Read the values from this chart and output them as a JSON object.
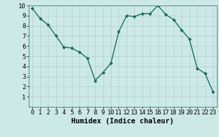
{
  "xlabel": "Humidex (Indice chaleur)",
  "x": [
    0,
    1,
    2,
    3,
    4,
    5,
    6,
    7,
    8,
    9,
    10,
    11,
    12,
    13,
    14,
    15,
    16,
    17,
    18,
    19,
    20,
    21,
    22,
    23
  ],
  "y": [
    9.7,
    8.7,
    8.1,
    7.0,
    5.9,
    5.8,
    5.4,
    4.8,
    2.6,
    3.4,
    4.3,
    7.4,
    9.0,
    8.9,
    9.2,
    9.2,
    10.0,
    9.1,
    8.6,
    7.6,
    6.7,
    3.8,
    3.3,
    1.5
  ],
  "line_color": "#1a6b5a",
  "marker": "D",
  "marker_size": 2.2,
  "bg_color": "#cce9e6",
  "grid_major_color": "#b0cfcc",
  "grid_minor_color": "#c4deda",
  "ylim": [
    0,
    10
  ],
  "xlim": [
    -0.5,
    23.5
  ],
  "yticks": [
    1,
    2,
    3,
    4,
    5,
    6,
    7,
    8,
    9,
    10
  ],
  "xticks": [
    0,
    1,
    2,
    3,
    4,
    5,
    6,
    7,
    8,
    9,
    10,
    11,
    12,
    13,
    14,
    15,
    16,
    17,
    18,
    19,
    20,
    21,
    22,
    23
  ],
  "xlabel_fontsize": 7.5,
  "tick_fontsize": 6.5,
  "line_width": 1.0
}
